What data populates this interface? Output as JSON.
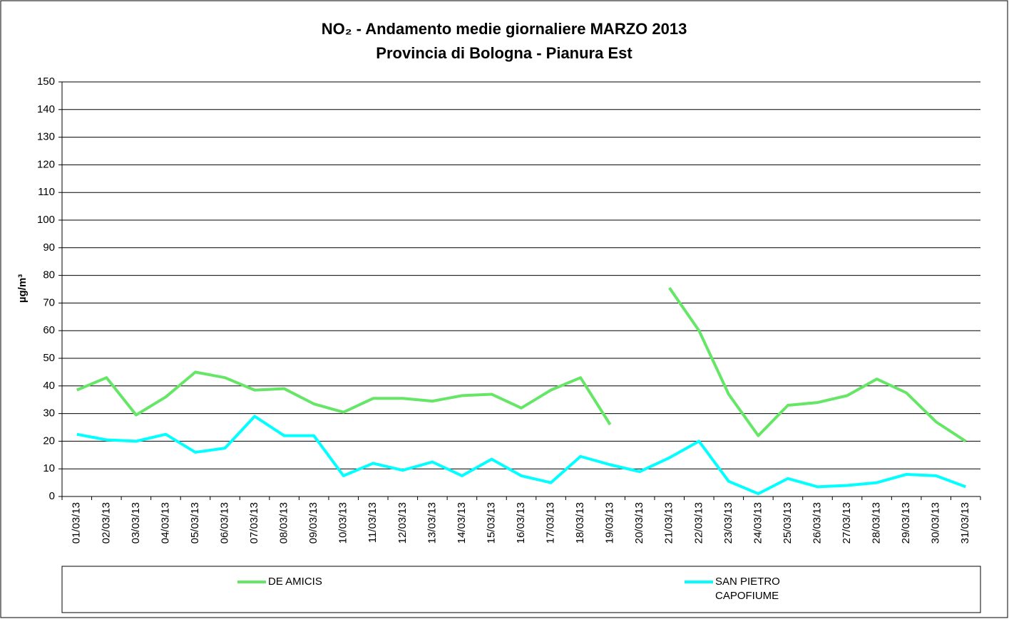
{
  "chart_data": {
    "type": "line",
    "title": "NO₂ - Andamento medie giornaliere MARZO 2013",
    "subtitle": "Provincia di Bologna - Pianura Est",
    "y_label": "µg/m³",
    "categories": [
      "01/03/13",
      "02/03/13",
      "03/03/13",
      "04/03/13",
      "05/03/13",
      "06/03/13",
      "07/03/13",
      "08/03/13",
      "09/03/13",
      "10/03/13",
      "11/03/13",
      "12/03/13",
      "13/03/13",
      "14/03/13",
      "15/03/13",
      "16/03/13",
      "17/03/13",
      "18/03/13",
      "19/03/13",
      "20/03/13",
      "21/03/13",
      "22/03/13",
      "23/03/13",
      "24/03/13",
      "25/03/13",
      "26/03/13",
      "27/03/13",
      "28/03/13",
      "29/03/13",
      "30/03/13",
      "31/03/13"
    ],
    "series": [
      {
        "name": "DE AMICIS",
        "color": "#66e666",
        "values": [
          38.5,
          43,
          29.5,
          36,
          45,
          43,
          38.5,
          39,
          33.5,
          30.5,
          35.5,
          35.5,
          34.5,
          36.5,
          37,
          32,
          38.5,
          43,
          26,
          null,
          75.5,
          60,
          37,
          22,
          33,
          34,
          36.5,
          42.5,
          37.5,
          27,
          20
        ]
      },
      {
        "name": "SAN PIETRO CAPOFIUME",
        "color": "#00ffff",
        "values": [
          22.5,
          20.5,
          20,
          22.5,
          16,
          17.5,
          29,
          22,
          22,
          7.5,
          12,
          9.5,
          12.5,
          7.5,
          13.5,
          7.5,
          5,
          14.5,
          11.5,
          9,
          14,
          20,
          5.5,
          1,
          6.5,
          3.5,
          4,
          5,
          8,
          7.5,
          3.5
        ]
      }
    ],
    "ylim": [
      0,
      150
    ],
    "yticks": [
      0,
      10,
      20,
      30,
      40,
      50,
      60,
      70,
      80,
      90,
      100,
      110,
      120,
      130,
      140,
      150
    ],
    "grid": true
  }
}
